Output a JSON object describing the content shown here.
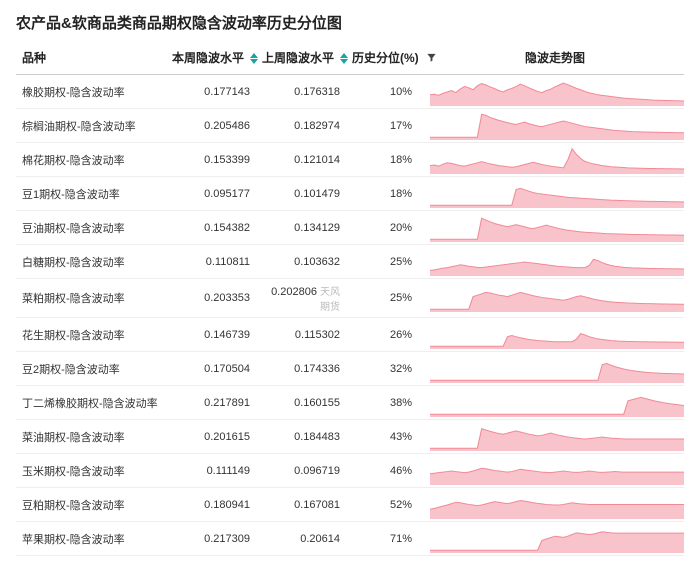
{
  "title": "农产品&软商品类商品期权隐含波动率历史分位图",
  "columns": {
    "name": "品种",
    "week": "本周隐波水平",
    "prev": "上周隐波水平",
    "pct": "历史分位(%)",
    "spark": "隐波走势图"
  },
  "style": {
    "spark_fill": "#f8c3ca",
    "spark_stroke": "#f28a96",
    "spark_stroke_width": 1,
    "background": "#ffffff",
    "row_border": "#eeeeee",
    "header_border": "#cccccc",
    "font_body": 11,
    "font_header": 12,
    "font_title": 15,
    "spark_width": 240,
    "spark_height": 28
  },
  "watermark": "天风期货",
  "rows": [
    {
      "name": "橡胶期权-隐含波动率",
      "week": "0.177143",
      "prev": "0.176318",
      "pct": "10%",
      "spark": [
        40,
        42,
        38,
        45,
        50,
        55,
        48,
        60,
        70,
        65,
        58,
        72,
        80,
        75,
        68,
        62,
        55,
        50,
        58,
        63,
        70,
        78,
        72,
        65,
        58,
        52,
        48,
        55,
        60,
        68,
        75,
        82,
        76,
        70,
        63,
        58,
        52,
        47,
        44,
        40,
        38,
        36,
        34,
        32,
        30,
        28,
        27,
        26,
        25,
        24,
        23,
        22,
        21,
        20.5,
        20,
        19.5,
        19,
        18.8,
        18.5,
        18
      ]
    },
    {
      "name": "棕榈油期权-隐含波动率",
      "week": "0.205486",
      "prev": "0.182974",
      "pct": "17%",
      "spark": [
        10,
        10,
        10,
        10,
        10,
        10,
        10,
        10,
        10,
        10,
        10,
        10,
        92,
        88,
        80,
        75,
        70,
        66,
        62,
        58,
        56,
        60,
        64,
        58,
        54,
        50,
        48,
        52,
        56,
        60,
        64,
        68,
        64,
        60,
        56,
        52,
        48,
        46,
        44,
        42,
        40,
        38,
        36,
        34,
        33,
        32,
        31,
        30,
        29.5,
        29,
        28.5,
        28,
        27.8,
        27.5,
        27.2,
        27,
        26.8,
        26.5,
        26,
        25.8
      ]
    },
    {
      "name": "棉花期权-隐含波动率",
      "week": "0.153399",
      "prev": "0.121014",
      "pct": "18%",
      "spark": [
        30,
        32,
        28,
        35,
        40,
        38,
        34,
        30,
        28,
        32,
        36,
        40,
        44,
        40,
        36,
        33,
        30,
        28,
        26,
        24,
        26,
        30,
        34,
        38,
        42,
        38,
        34,
        31,
        28,
        26,
        24,
        22,
        50,
        90,
        70,
        55,
        45,
        40,
        36,
        33,
        30,
        28,
        26,
        25,
        24,
        23,
        22,
        21.5,
        21,
        20.5,
        20,
        19.8,
        19.5,
        19.2,
        19,
        18.8,
        18.6,
        18.4,
        18.2,
        18
      ]
    },
    {
      "name": "豆1期权-隐含波动率",
      "week": "0.095177",
      "prev": "0.101479",
      "pct": "18%",
      "spark": [
        10,
        10,
        10,
        10,
        10,
        10,
        10,
        10,
        10,
        10,
        10,
        10,
        10,
        10,
        10,
        10,
        10,
        10,
        10,
        10,
        66,
        70,
        65,
        60,
        55,
        52,
        50,
        48,
        46,
        44,
        42,
        40,
        38,
        37,
        36,
        35,
        34,
        33,
        32,
        31,
        30,
        29,
        28,
        27.5,
        27,
        26.5,
        26,
        25.5,
        25,
        24.6,
        24.2,
        23.8,
        23.5,
        23.2,
        23,
        22.8,
        22.5,
        22.3,
        22,
        21.8
      ]
    },
    {
      "name": "豆油期权-隐含波动率",
      "week": "0.154382",
      "prev": "0.134129",
      "pct": "20%",
      "spark": [
        10,
        10,
        10,
        10,
        10,
        10,
        10,
        10,
        10,
        10,
        10,
        10,
        85,
        78,
        72,
        66,
        62,
        58,
        55,
        58,
        62,
        58,
        54,
        50,
        48,
        52,
        56,
        60,
        56,
        52,
        48,
        45,
        42,
        40,
        38,
        36,
        35,
        34,
        33,
        32,
        31,
        30,
        29.5,
        29,
        28.5,
        28,
        27.5,
        27,
        26.8,
        26.5,
        26.2,
        26,
        25.8,
        25.6,
        25.4,
        25.2,
        25,
        24.8,
        24.6,
        24.4
      ]
    },
    {
      "name": "白糖期权-隐含波动率",
      "week": "0.110811",
      "prev": "0.103632",
      "pct": "25%",
      "spark": [
        20,
        22,
        25,
        28,
        30,
        33,
        36,
        40,
        38,
        35,
        33,
        31,
        30,
        32,
        34,
        36,
        38,
        40,
        42,
        44,
        46,
        48,
        50,
        48,
        46,
        44,
        42,
        40,
        38,
        36,
        34,
        33,
        32,
        31,
        30,
        30,
        30,
        38,
        60,
        55,
        48,
        42,
        38,
        35,
        33,
        31,
        30,
        29,
        28.5,
        28,
        27.5,
        27,
        26.8,
        26.5,
        26.3,
        26,
        25.8,
        25.6,
        25.4,
        25.2
      ]
    },
    {
      "name": "菜粕期权-隐含波动率",
      "week": "0.203353",
      "prev": "0.202806",
      "pct": "25%",
      "spark": [
        10,
        10,
        10,
        10,
        10,
        10,
        10,
        10,
        10,
        10,
        55,
        60,
        65,
        70,
        68,
        64,
        60,
        58,
        55,
        60,
        65,
        70,
        66,
        62,
        58,
        55,
        52,
        50,
        48,
        46,
        44,
        42,
        45,
        50,
        55,
        58,
        54,
        50,
        46,
        43,
        40,
        38,
        36,
        35,
        34,
        33,
        32,
        31.5,
        31,
        30.5,
        30,
        29.7,
        29.4,
        29.1,
        28.8,
        28.5,
        28.3,
        28,
        27.8,
        27.5
      ],
      "watermark": true
    },
    {
      "name": "花生期权-隐含波动率",
      "week": "0.146739",
      "prev": "0.115302",
      "pct": "26%",
      "spark": [
        10,
        10,
        10,
        10,
        10,
        10,
        10,
        10,
        10,
        10,
        10,
        10,
        10,
        10,
        10,
        10,
        10,
        10,
        44,
        48,
        44,
        40,
        37,
        34,
        32,
        30,
        29,
        28,
        27,
        26,
        26,
        26,
        26,
        26,
        35,
        55,
        50,
        44,
        40,
        36,
        34,
        32,
        30,
        29,
        28,
        27.5,
        27,
        26.7,
        26.4,
        26.1,
        25.8,
        25.6,
        25.4,
        25.2,
        25,
        24.8,
        24.6,
        24.5,
        24.3,
        24.2
      ]
    },
    {
      "name": "豆2期权-隐含波动率",
      "week": "0.170504",
      "prev": "0.174336",
      "pct": "32%",
      "spark": [
        10,
        10,
        10,
        10,
        10,
        10,
        10,
        10,
        10,
        10,
        10,
        10,
        10,
        10,
        10,
        10,
        10,
        10,
        10,
        10,
        10,
        10,
        10,
        10,
        10,
        10,
        10,
        10,
        10,
        10,
        10,
        10,
        10,
        10,
        10,
        10,
        10,
        10,
        10,
        10,
        65,
        70,
        64,
        58,
        54,
        50,
        47,
        44,
        42,
        40,
        38.5,
        37,
        36,
        35.2,
        34.5,
        34,
        33.5,
        33,
        32.6,
        32.2
      ]
    },
    {
      "name": "丁二烯橡胶期权-隐含波动率",
      "week": "0.217891",
      "prev": "0.160155",
      "pct": "38%",
      "spark": [
        10,
        10,
        10,
        10,
        10,
        10,
        10,
        10,
        10,
        10,
        10,
        10,
        10,
        10,
        10,
        10,
        10,
        10,
        10,
        10,
        10,
        10,
        10,
        10,
        10,
        10,
        10,
        10,
        10,
        10,
        10,
        10,
        10,
        10,
        10,
        10,
        10,
        10,
        10,
        10,
        10,
        10,
        10,
        10,
        10,
        10,
        58,
        62,
        66,
        70,
        66,
        62,
        58,
        55,
        52,
        49,
        47,
        45,
        43,
        41
      ]
    },
    {
      "name": "菜油期权-隐含波动率",
      "week": "0.201615",
      "prev": "0.184483",
      "pct": "43%",
      "spark": [
        10,
        10,
        10,
        10,
        10,
        10,
        10,
        10,
        10,
        10,
        10,
        10,
        80,
        75,
        70,
        66,
        62,
        60,
        64,
        68,
        72,
        68,
        64,
        60,
        57,
        54,
        56,
        60,
        64,
        60,
        56,
        53,
        50,
        48,
        46,
        44,
        43,
        44,
        46,
        48,
        50,
        48,
        46,
        45,
        44,
        43.5,
        43,
        43,
        43,
        43,
        43,
        43,
        43,
        43,
        43,
        43,
        43,
        43,
        43,
        43
      ]
    },
    {
      "name": "玉米期权-隐含波动率",
      "week": "0.111149",
      "prev": "0.096719",
      "pct": "46%",
      "spark": [
        40,
        42,
        44,
        46,
        48,
        50,
        48,
        46,
        44,
        46,
        50,
        55,
        60,
        58,
        55,
        52,
        50,
        48,
        46,
        48,
        52,
        56,
        54,
        52,
        50,
        48,
        46,
        45,
        44,
        46,
        48,
        50,
        48,
        46,
        45,
        46,
        48,
        50,
        48,
        46,
        45,
        46,
        47,
        48,
        47,
        46,
        46,
        46,
        46,
        46,
        46,
        46,
        46,
        46,
        46,
        46,
        46,
        46,
        46,
        46
      ]
    },
    {
      "name": "豆粕期权-隐含波动率",
      "week": "0.180941",
      "prev": "0.167081",
      "pct": "52%",
      "spark": [
        35,
        38,
        42,
        46,
        50,
        55,
        60,
        58,
        55,
        52,
        50,
        48,
        50,
        54,
        58,
        62,
        60,
        57,
        55,
        58,
        62,
        66,
        64,
        61,
        58,
        56,
        54,
        52,
        51,
        50,
        50,
        52,
        55,
        58,
        56,
        54,
        53,
        52,
        52,
        52,
        52,
        52,
        52,
        52,
        52,
        52,
        52,
        52,
        52,
        52,
        52,
        52,
        52,
        52,
        52,
        52,
        52,
        52,
        52,
        52
      ]
    },
    {
      "name": "苹果期权-隐含波动率",
      "week": "0.217309",
      "prev": "0.20614",
      "pct": "71%",
      "spark": [
        10,
        10,
        10,
        10,
        10,
        10,
        10,
        10,
        10,
        10,
        10,
        10,
        10,
        10,
        10,
        10,
        10,
        10,
        10,
        10,
        10,
        10,
        10,
        10,
        10,
        10,
        45,
        50,
        55,
        60,
        58,
        56,
        60,
        66,
        72,
        70,
        68,
        66,
        68,
        72,
        76,
        74,
        72,
        71,
        71,
        71,
        71,
        71,
        71,
        71,
        71,
        71,
        71,
        71,
        71,
        71,
        71,
        71,
        71,
        71
      ]
    }
  ]
}
